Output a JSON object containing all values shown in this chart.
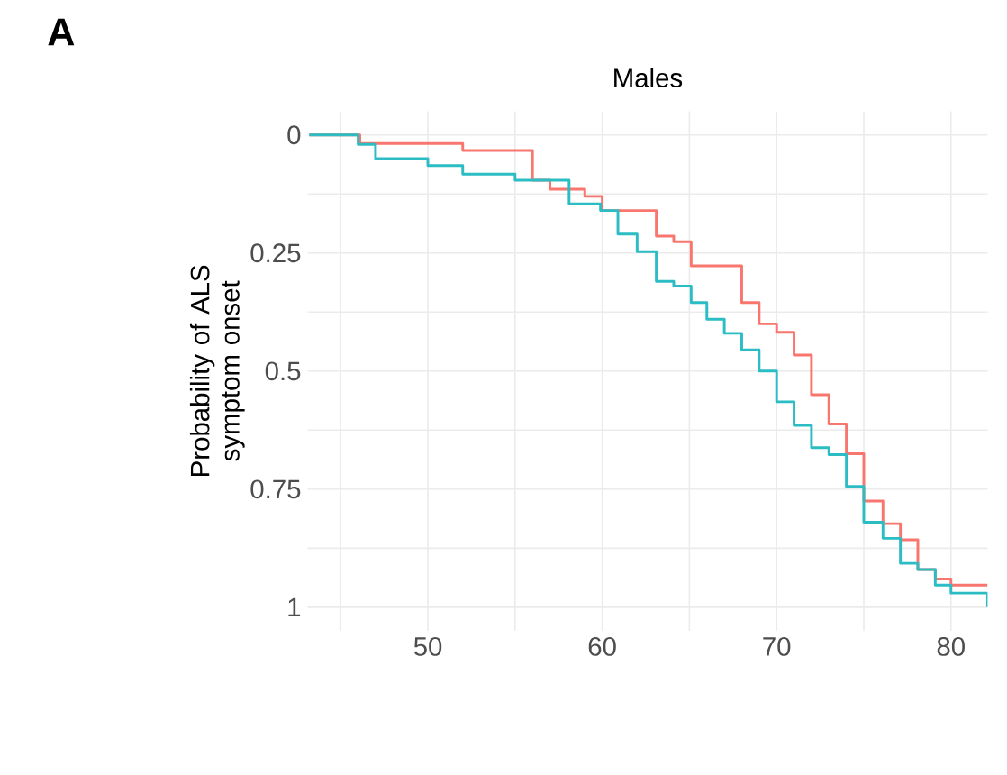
{
  "chart_data": {
    "type": "step",
    "title": "Males",
    "ylabel": "Probability of ALS symptom onset",
    "annotations": [
      "A"
    ],
    "xlim": [
      43.1,
      82.1
    ],
    "ylim": [
      1.05,
      -0.05
    ],
    "xticks": [
      {
        "value": 45,
        "label": null
      },
      50,
      {
        "value": 55,
        "label": null
      },
      60,
      {
        "value": 65,
        "label": null
      },
      70,
      {
        "value": 75,
        "label": null
      },
      80
    ],
    "yticks": [
      0,
      {
        "value": 0.125,
        "label": null
      },
      0.25,
      {
        "value": 0.375,
        "label": null
      },
      0.5,
      {
        "value": 0.625,
        "label": null
      },
      0.75,
      {
        "value": 0.875,
        "label": null
      },
      1
    ],
    "grid": true,
    "legend": false,
    "series": [
      {
        "color": "#f8766d",
        "x": [
          43.2,
          46.1,
          52.0,
          56.0,
          57.0,
          59.0,
          60.0,
          63.1,
          64.1,
          65.1,
          68.0,
          69.0,
          70.0,
          71.0,
          72.0,
          73.0,
          74.0,
          75.0,
          76.1,
          77.1,
          78.1,
          79.1,
          80.0,
          82.1
        ],
        "values": [
          0,
          0.018,
          0.033,
          0.096,
          0.115,
          0.13,
          0.16,
          0.214,
          0.226,
          0.277,
          0.355,
          0.4,
          0.418,
          0.466,
          0.55,
          0.612,
          0.675,
          0.775,
          0.823,
          0.857,
          0.92,
          0.94,
          0.953,
          0.953
        ]
      },
      {
        "color": "#2bbcc4",
        "x": [
          43.2,
          46.0,
          47.0,
          50.0,
          52.0,
          55.0,
          58.1,
          59.9,
          60.9,
          62.0,
          63.1,
          64.1,
          65.1,
          66.0,
          67.0,
          68.0,
          69.0,
          70.0,
          71.0,
          72.0,
          73.0,
          74.0,
          75.0,
          76.1,
          77.1,
          78.1,
          79.1,
          80.0,
          82.1
        ],
        "values": [
          0,
          0.02,
          0.05,
          0.065,
          0.083,
          0.096,
          0.146,
          0.16,
          0.21,
          0.247,
          0.31,
          0.32,
          0.355,
          0.39,
          0.42,
          0.455,
          0.5,
          0.565,
          0.615,
          0.662,
          0.677,
          0.744,
          0.82,
          0.854,
          0.907,
          0.92,
          0.953,
          0.97,
          1.0
        ]
      }
    ]
  }
}
